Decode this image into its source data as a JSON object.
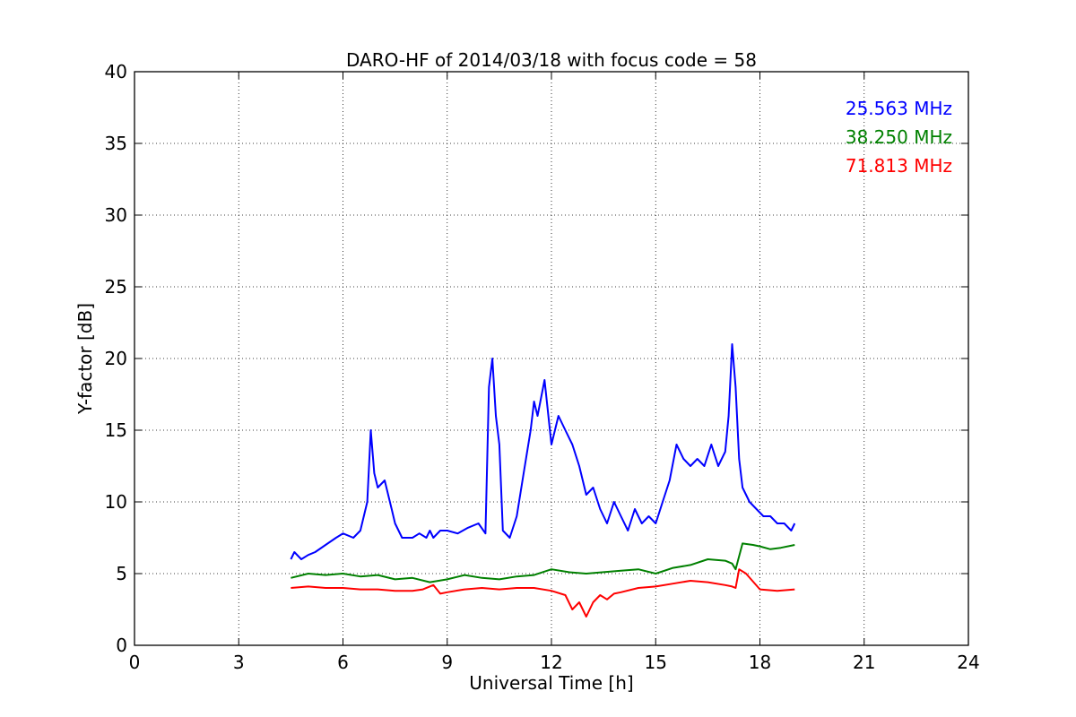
{
  "chart_data": {
    "type": "line",
    "title": "DARO-HF of 2014/03/18 with focus code = 58",
    "xlabel": "Universal Time [h]",
    "ylabel": "Y-factor [dB]",
    "xlim": [
      0,
      24
    ],
    "ylim": [
      0,
      40
    ],
    "xticks": [
      0,
      3,
      6,
      9,
      12,
      15,
      18,
      21,
      24
    ],
    "yticks": [
      0,
      5,
      10,
      15,
      20,
      25,
      30,
      35,
      40
    ],
    "grid": true,
    "legend_position": "top-right",
    "series": [
      {
        "name": "25.563 MHz",
        "color": "#0000ff",
        "x": [
          4.5,
          4.6,
          4.8,
          5.0,
          5.2,
          5.5,
          5.8,
          6.0,
          6.3,
          6.5,
          6.7,
          6.8,
          6.9,
          7.0,
          7.2,
          7.4,
          7.5,
          7.7,
          8.0,
          8.2,
          8.4,
          8.5,
          8.6,
          8.8,
          9.0,
          9.3,
          9.6,
          9.9,
          10.1,
          10.2,
          10.3,
          10.4,
          10.5,
          10.6,
          10.8,
          11.0,
          11.2,
          11.4,
          11.5,
          11.6,
          11.8,
          12.0,
          12.2,
          12.4,
          12.6,
          12.8,
          13.0,
          13.2,
          13.4,
          13.6,
          13.8,
          14.0,
          14.2,
          14.4,
          14.6,
          14.8,
          15.0,
          15.2,
          15.4,
          15.6,
          15.8,
          16.0,
          16.2,
          16.4,
          16.6,
          16.8,
          17.0,
          17.1,
          17.2,
          17.3,
          17.4,
          17.5,
          17.7,
          17.9,
          18.1,
          18.3,
          18.5,
          18.7,
          18.9,
          19.0
        ],
        "y": [
          6.0,
          6.5,
          6.0,
          6.3,
          6.5,
          7.0,
          7.5,
          7.8,
          7.5,
          8.0,
          10.0,
          15.0,
          12.0,
          11.0,
          11.5,
          9.5,
          8.5,
          7.5,
          7.5,
          7.8,
          7.5,
          8.0,
          7.5,
          8.0,
          8.0,
          7.8,
          8.2,
          8.5,
          7.8,
          18.0,
          20.0,
          16.0,
          14.0,
          8.0,
          7.5,
          9.0,
          12.0,
          15.0,
          17.0,
          16.0,
          18.5,
          14.0,
          16.0,
          15.0,
          14.0,
          12.5,
          10.5,
          11.0,
          9.5,
          8.5,
          10.0,
          9.0,
          8.0,
          9.5,
          8.5,
          9.0,
          8.5,
          10.0,
          11.5,
          14.0,
          13.0,
          12.5,
          13.0,
          12.5,
          14.0,
          12.5,
          13.5,
          16.0,
          21.0,
          18.0,
          13.0,
          11.0,
          10.0,
          9.5,
          9.0,
          9.0,
          8.5,
          8.5,
          8.0,
          8.5
        ]
      },
      {
        "name": "38.250 MHz",
        "color": "#008000",
        "x": [
          4.5,
          5.0,
          5.5,
          6.0,
          6.5,
          7.0,
          7.5,
          8.0,
          8.5,
          9.0,
          9.5,
          10.0,
          10.5,
          11.0,
          11.5,
          12.0,
          12.5,
          13.0,
          13.5,
          14.0,
          14.5,
          15.0,
          15.5,
          16.0,
          16.5,
          17.0,
          17.2,
          17.3,
          17.5,
          17.8,
          18.0,
          18.3,
          18.6,
          19.0
        ],
        "y": [
          4.7,
          5.0,
          4.9,
          5.0,
          4.8,
          4.9,
          4.6,
          4.7,
          4.4,
          4.6,
          4.9,
          4.7,
          4.6,
          4.8,
          4.9,
          5.3,
          5.1,
          5.0,
          5.1,
          5.2,
          5.3,
          5.0,
          5.4,
          5.6,
          6.0,
          5.9,
          5.7,
          5.3,
          7.1,
          7.0,
          6.9,
          6.7,
          6.8,
          7.0
        ]
      },
      {
        "name": "71.813 MHz",
        "color": "#ff0000",
        "x": [
          4.5,
          5.0,
          5.5,
          6.0,
          6.5,
          7.0,
          7.5,
          8.0,
          8.3,
          8.6,
          8.8,
          9.0,
          9.5,
          10.0,
          10.5,
          11.0,
          11.5,
          12.0,
          12.4,
          12.6,
          12.8,
          13.0,
          13.2,
          13.4,
          13.6,
          13.8,
          14.0,
          14.5,
          15.0,
          15.5,
          16.0,
          16.5,
          17.0,
          17.2,
          17.3,
          17.4,
          17.6,
          18.0,
          18.5,
          19.0
        ],
        "y": [
          4.0,
          4.1,
          4.0,
          4.0,
          3.9,
          3.9,
          3.8,
          3.8,
          3.9,
          4.2,
          3.6,
          3.7,
          3.9,
          4.0,
          3.9,
          4.0,
          4.0,
          3.8,
          3.5,
          2.5,
          3.0,
          2.0,
          3.0,
          3.5,
          3.2,
          3.6,
          3.7,
          4.0,
          4.1,
          4.3,
          4.5,
          4.4,
          4.2,
          4.1,
          4.0,
          5.3,
          5.0,
          3.9,
          3.8,
          3.9
        ]
      }
    ]
  }
}
